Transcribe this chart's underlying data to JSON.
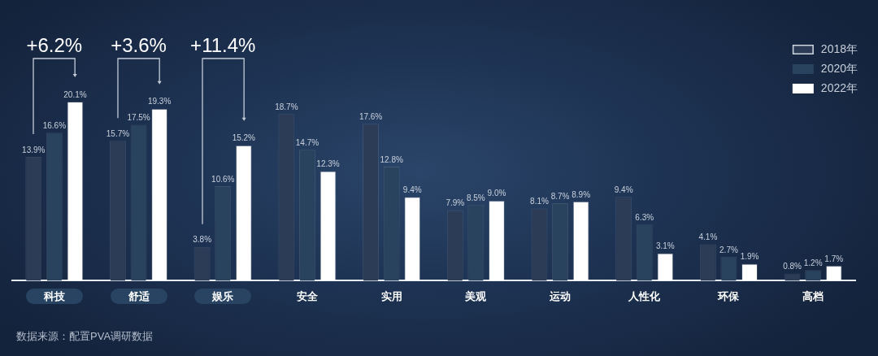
{
  "chart_data": {
    "type": "bar",
    "categories": [
      "科技",
      "舒适",
      "娱乐",
      "安全",
      "实用",
      "美观",
      "运动",
      "人性化",
      "环保",
      "高档"
    ],
    "series": [
      {
        "name": "2018年",
        "color": "#2c3c57",
        "values": [
          13.9,
          15.7,
          3.8,
          18.7,
          17.6,
          7.9,
          8.1,
          9.4,
          4.1,
          0.8
        ],
        "value_labels": [
          "13.9%",
          "15.7%",
          "3.8%",
          "18.7%",
          "17.6%",
          "7.9%",
          "8.1%",
          "9.4%",
          "4.1%",
          "0.8%"
        ]
      },
      {
        "name": "2020年",
        "color": "#29435f",
        "values": [
          16.6,
          17.5,
          10.6,
          14.7,
          12.8,
          8.5,
          8.7,
          6.3,
          2.7,
          1.2
        ],
        "value_labels": [
          "16.6%",
          "17.5%",
          "10.6%",
          "14.7%",
          "12.8%",
          "8.5%",
          "8.7%",
          "6.3%",
          "2.7%",
          "1.2%"
        ]
      },
      {
        "name": "2022年",
        "color": "#ffffff",
        "values": [
          20.1,
          19.3,
          15.2,
          12.3,
          9.4,
          9.0,
          8.9,
          3.1,
          1.9,
          1.7
        ],
        "value_labels": [
          "20.1%",
          "19.3%",
          "15.2%",
          "12.3%",
          "9.4%",
          "9.0%",
          "8.9%",
          "3.1%",
          "1.9%",
          "1.7%"
        ]
      }
    ],
    "legend": "top right",
    "annotations": [
      "+6.2%",
      "+3.6%",
      "+11.4%",
      "数据来源：配置PVA调研数据"
    ]
  }
}
